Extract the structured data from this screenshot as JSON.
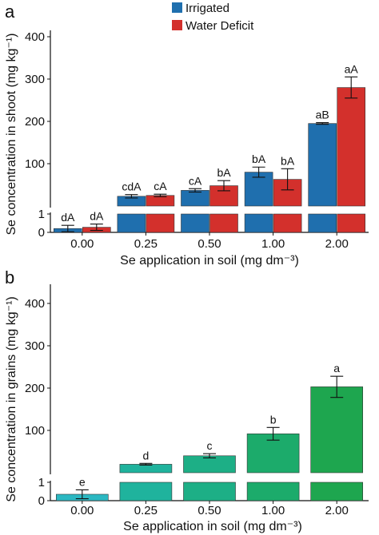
{
  "chart_data": [
    {
      "type": "bar",
      "panel_label": "a",
      "ylabel": "Se concentration in shoot (mg kg⁻¹)",
      "xlabel": "Se application in soil (mg dm⁻³)",
      "categories": [
        "0.00",
        "0.25",
        "0.50",
        "1.00",
        "2.00"
      ],
      "y_ticks_upper": [
        "100",
        "200",
        "300",
        "400"
      ],
      "y_ticks_lower": [
        "0",
        "1"
      ],
      "axis_break": true,
      "legend": {
        "placement": "top"
      },
      "series": [
        {
          "name": "Irrigated",
          "color": "#1f6fae",
          "values": [
            0.3,
            23,
            37,
            80,
            195
          ],
          "errors": [
            0.25,
            4,
            4,
            12,
            2
          ],
          "labels": [
            "dA",
            "cdA",
            "cA",
            "bA",
            "aB"
          ]
        },
        {
          "name": "Water Deficit",
          "color": "#d3302c",
          "values": [
            0.4,
            25,
            48,
            63,
            280
          ],
          "errors": [
            0.25,
            3,
            12,
            25,
            25
          ],
          "labels": [
            "dA",
            "cA",
            "bA",
            "bA",
            "aA"
          ]
        }
      ]
    },
    {
      "type": "bar",
      "panel_label": "b",
      "ylabel": "Se concentration in grains (mg kg⁻¹)",
      "xlabel": "Se application in soil (mg dm⁻³)",
      "categories": [
        "0.00",
        "0.25",
        "0.50",
        "1.00",
        "2.00"
      ],
      "y_ticks_upper": [
        "100",
        "200",
        "300",
        "400"
      ],
      "y_ticks_lower": [
        "0",
        "1"
      ],
      "axis_break": true,
      "series": [
        {
          "values": [
            0.5,
            20,
            40,
            92,
            203
          ],
          "errors": [
            0.35,
            2,
            5,
            15,
            25
          ],
          "labels": [
            "e",
            "d",
            "c",
            "b",
            "a"
          ],
          "colors": [
            "#2bb8c2",
            "#1fb39d",
            "#1daf86",
            "#1cab6b",
            "#1ea64f"
          ]
        }
      ]
    }
  ]
}
